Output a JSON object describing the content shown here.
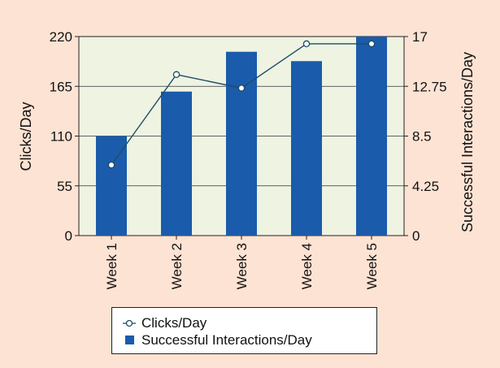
{
  "chart_data": {
    "type": "bar",
    "categories": [
      "Week 1",
      "Week 2",
      "Week 3",
      "Week 4",
      "Week 5"
    ],
    "series": [
      {
        "name": "Clicks/Day",
        "type": "line",
        "axis": "left",
        "values": [
          78,
          178,
          163,
          212,
          212
        ],
        "color": "#1f4d66"
      },
      {
        "name": "Successful Interactions/Day",
        "type": "bar",
        "axis": "right",
        "values": [
          8.5,
          12.3,
          15.7,
          14.9,
          17.0
        ],
        "color": "#1a5bab"
      }
    ],
    "left_axis": {
      "label": "Clicks/Day",
      "ylim": [
        0,
        220
      ],
      "ticks": [
        "0",
        "55",
        "110",
        "165",
        "220"
      ]
    },
    "right_axis": {
      "label": "Successful Interactions/Day",
      "ylim": [
        0,
        17
      ],
      "ticks": [
        "0",
        "4.25",
        "8.5",
        "12.75",
        "17"
      ]
    },
    "grid": true,
    "legend_position": "bottom",
    "colors": {
      "background": "#fde3d3",
      "plot_area": "#eef3e2",
      "bar": "#1a5bab",
      "line": "#1f4d66"
    }
  }
}
